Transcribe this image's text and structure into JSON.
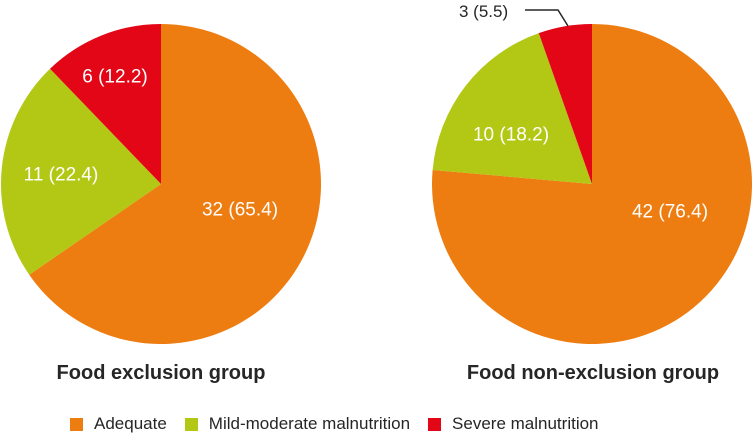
{
  "chart_data": [
    {
      "type": "pie",
      "title": "Food exclusion group",
      "start_angle_deg_from_north": 0,
      "direction": "clockwise",
      "slices": [
        {
          "label": "Adequate",
          "count": 32,
          "percent": 65.4,
          "display": "32 (65.4)"
        },
        {
          "label": "Mild-moderate malnutrition",
          "count": 11,
          "percent": 22.4,
          "display": "11 (22.4)"
        },
        {
          "label": "Severe malnutrition",
          "count": 6,
          "percent": 12.2,
          "display": "6 (12.2)"
        }
      ]
    },
    {
      "type": "pie",
      "title": "Food non-exclusion group",
      "start_angle_deg_from_north": 0,
      "direction": "clockwise",
      "slices": [
        {
          "label": "Adequate",
          "count": 42,
          "percent": 76.4,
          "display": "42 (76.4)"
        },
        {
          "label": "Mild-moderate malnutrition",
          "count": 10,
          "percent": 18.2,
          "display": "10 (18.2)"
        },
        {
          "label": "Severe malnutrition",
          "count": 3,
          "percent": 5.5,
          "display": "3 (5.5)"
        }
      ]
    }
  ],
  "legend": {
    "position": "bottom",
    "items": [
      {
        "label": "Adequate",
        "color": "#EE7D11"
      },
      {
        "label": "Mild-moderate malnutrition",
        "color": "#B2C815"
      },
      {
        "label": "Severe malnutrition",
        "color": "#E30617"
      }
    ]
  },
  "colors": {
    "adequate": "#EE7D11",
    "mild_moderate": "#B2C815",
    "severe": "#E30617",
    "text_dark": "#262626",
    "slice_label": "#FFFFFF",
    "background": "#FFFFFF"
  }
}
